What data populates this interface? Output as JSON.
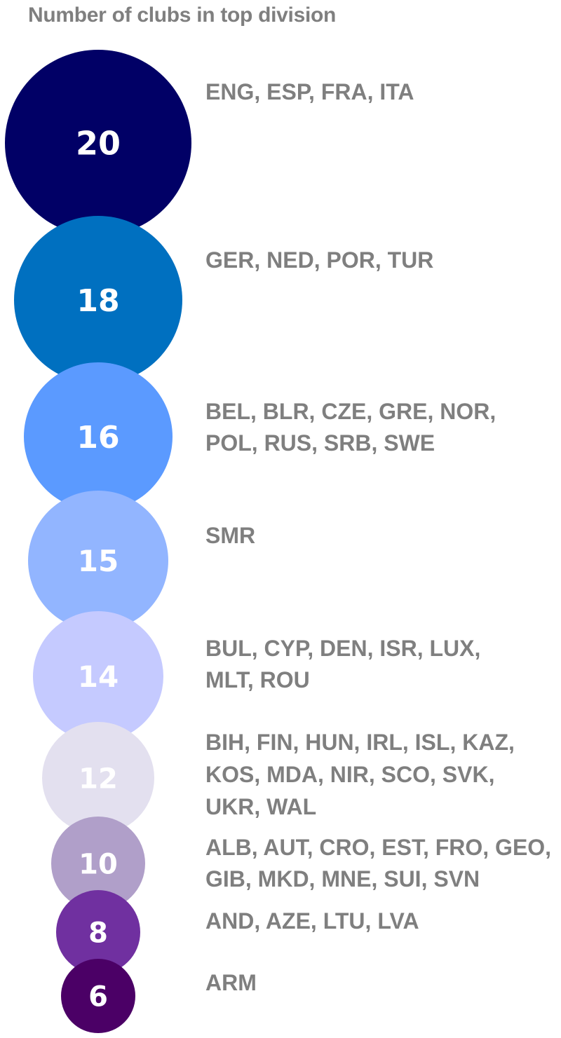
{
  "title": "Number of clubs in top division",
  "chart_data": {
    "type": "bubble",
    "title": "Number of clubs in top division",
    "series": [
      {
        "value": 20,
        "label": "20",
        "color": "#010066",
        "countries": [
          "ENG, ESP, FRA, ITA"
        ]
      },
      {
        "value": 18,
        "label": "18",
        "color": "#0070c0",
        "countries": [
          "GER, NED, POR, TUR"
        ]
      },
      {
        "value": 16,
        "label": "16",
        "color": "#5b9aff",
        "countries": [
          "BEL, BLR, CZE, GRE, NOR,",
          "POL, RUS, SRB, SWE"
        ]
      },
      {
        "value": 15,
        "label": "15",
        "color": "#92b5ff",
        "countries": [
          "SMR"
        ]
      },
      {
        "value": 14,
        "label": "14",
        "color": "#c5caff",
        "countries": [
          "BUL, CYP, DEN, ISR, LUX,",
          "MLT, ROU"
        ]
      },
      {
        "value": 12,
        "label": "12",
        "color": "#e3e0ef",
        "countries": [
          "BIH, FIN, HUN, IRL, ISL, KAZ,",
          "KOS, MDA, NIR, SCO, SVK,",
          "UKR, WAL"
        ]
      },
      {
        "value": 10,
        "label": "10",
        "color": "#b09fc9",
        "countries": [
          "ALB, AUT, CRO, EST, FRO, GEO,",
          "GIB, MKD, MNE, SUI, SVN"
        ]
      },
      {
        "value": 8,
        "label": "8",
        "color": "#7030a0",
        "countries": [
          "AND, AZE, LTU, LVA"
        ]
      },
      {
        "value": 6,
        "label": "6",
        "color": "#4b0066",
        "countries": [
          "ARM"
        ]
      }
    ]
  }
}
